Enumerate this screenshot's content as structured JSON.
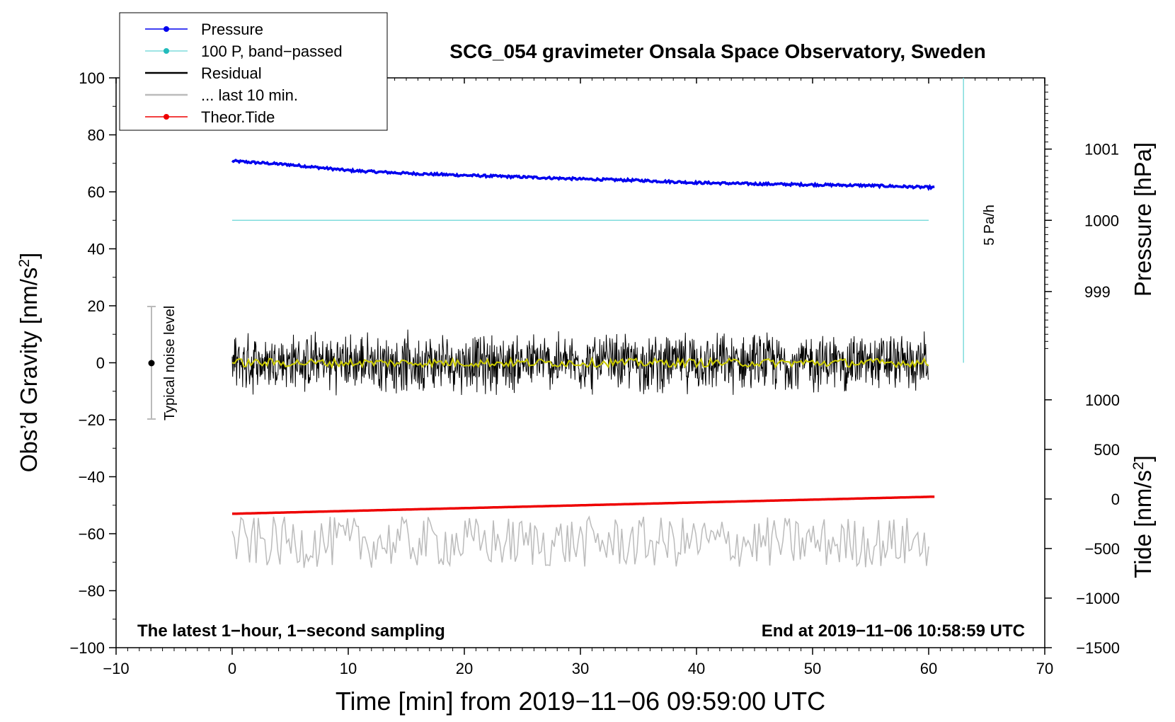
{
  "chart_data": {
    "type": "line",
    "title": "SCG_054 gravimeter Onsala Space Observatory, Sweden",
    "xlabel": "Time [min] from 2019−11−06 09:59:00 UTC",
    "ylabel_left_main": "Obs’d Gravity [nm/s",
    "ylabel_left_sup": "2",
    "ylabel_left_end": "]",
    "ylabel_right_pressure": "Pressure [hPa]",
    "ylabel_right_tide_main": "Tide [nm/s",
    "ylabel_right_tide_sup": "2",
    "ylabel_right_tide_end": "]",
    "xlim": [
      -10,
      70
    ],
    "ylim": [
      -100,
      100
    ],
    "x_ticks": [
      "−10",
      "0",
      "10",
      "20",
      "30",
      "40",
      "50",
      "60",
      "70"
    ],
    "x_tick_values": [
      -10,
      0,
      10,
      20,
      30,
      40,
      50,
      60,
      70
    ],
    "y_ticks": [
      "100",
      "80",
      "60",
      "40",
      "20",
      "0",
      "−20",
      "−40",
      "−60",
      "−80",
      "−100"
    ],
    "y_tick_values": [
      100,
      80,
      60,
      40,
      20,
      0,
      -20,
      -40,
      -60,
      -80,
      -100
    ],
    "pressure_ticks": [
      "1001",
      "1000",
      "999"
    ],
    "pressure_tick_values": [
      1001,
      1000,
      999
    ],
    "pressure_axis_map": {
      "hpa_at_gravity_50": 1000,
      "gravity_per_hpa": 25
    },
    "tide_ticks": [
      "1000",
      "500",
      "0",
      "−500",
      "−1000",
      "−1500"
    ],
    "tide_tick_values": [
      1000,
      500,
      0,
      -500,
      -1000,
      -1500
    ],
    "tide_axis_map": {
      "tide_at_gravity_minus_100": -1500,
      "tide_at_gravity_minus_13": 1000
    },
    "series": [
      {
        "name": "Pressure",
        "color": "#0000ee",
        "style": "line-dot",
        "x": [
          0,
          5,
          10,
          15,
          20,
          25,
          30,
          35,
          40,
          45,
          50,
          55,
          60.5
        ],
        "y": [
          70.8,
          69.5,
          67.5,
          66.5,
          65.8,
          65.2,
          64.5,
          64.0,
          63.2,
          62.8,
          62.5,
          62.2,
          61.5
        ]
      },
      {
        "name": "100 P, band−passed",
        "color": "#7fdcdc",
        "style": "line",
        "x": [
          0,
          60
        ],
        "y": [
          50,
          50
        ]
      },
      {
        "name": "Residual",
        "color": "#000000",
        "style": "noise",
        "x_start": 0,
        "x_end": 60,
        "center": 0,
        "amplitude": 12
      },
      {
        "name": "... last 10 min.",
        "color": "#bbbbbb",
        "style": "noise",
        "x_start": 0,
        "x_end": 60,
        "center": -63,
        "amplitude": 9
      },
      {
        "name": "Theor.Tide",
        "color": "#ee0000",
        "style": "line-dot",
        "x": [
          0,
          60.5
        ],
        "y": [
          -53,
          -47
        ]
      }
    ],
    "filtered_residual": {
      "color": "#cccc00",
      "x_start": 0,
      "x_end": 60,
      "center": 0,
      "amplitude": 1.5
    },
    "rate_line": {
      "label": "5 Pa/h",
      "color": "#7fdcdc",
      "x": 63,
      "y_from": 0,
      "y_to": 100
    },
    "noise_bar": {
      "label": "Typical noise level",
      "x": -7,
      "y_center": 0,
      "y_low": -20,
      "y_high": 20
    },
    "annotations": {
      "bottom_left": "The latest 1−hour, 1−second sampling",
      "bottom_right": "End at 2019−11−06 10:58:59 UTC"
    },
    "legend": {
      "placement": "top-left"
    }
  }
}
